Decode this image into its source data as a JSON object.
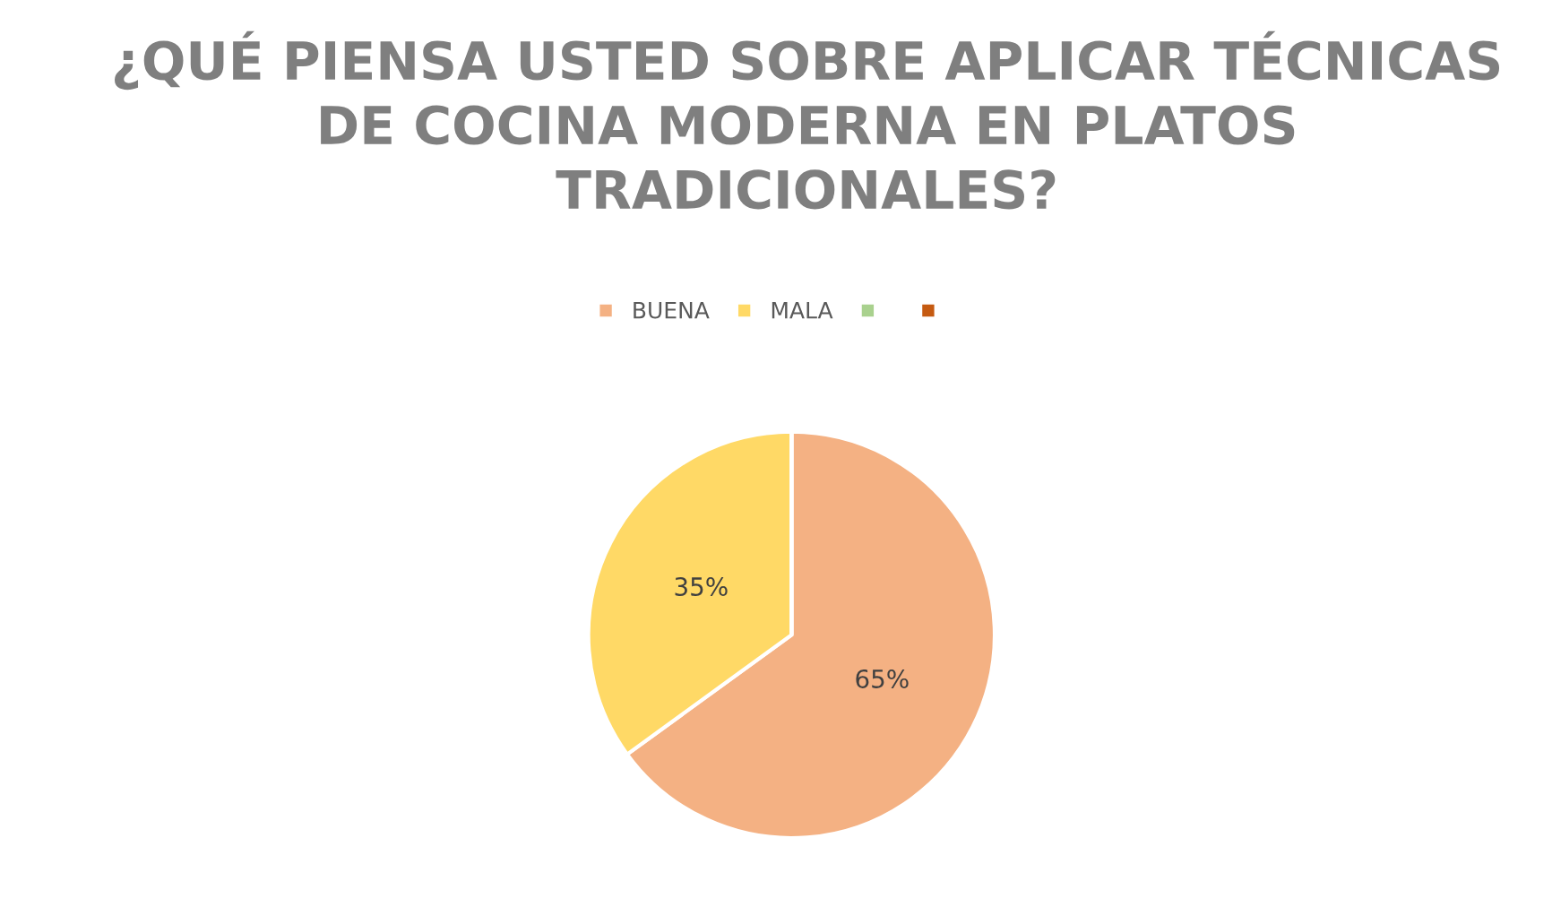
{
  "chart_data": {
    "type": "pie",
    "title": "¿QUÉ PIENSA USTED SOBRE APLICAR TÉCNICAS DE COCINA MODERNA EN PLATOS TRADICIONALES?",
    "categories": [
      "BUENA",
      "MALA",
      null,
      null
    ],
    "values": [
      65,
      35,
      0,
      0
    ],
    "colors": [
      "#f4b183",
      "#ffd966",
      "#a9d18e",
      "#c55a11"
    ],
    "value_labels": [
      "65%",
      "35%",
      null,
      null
    ],
    "legend": "top"
  }
}
